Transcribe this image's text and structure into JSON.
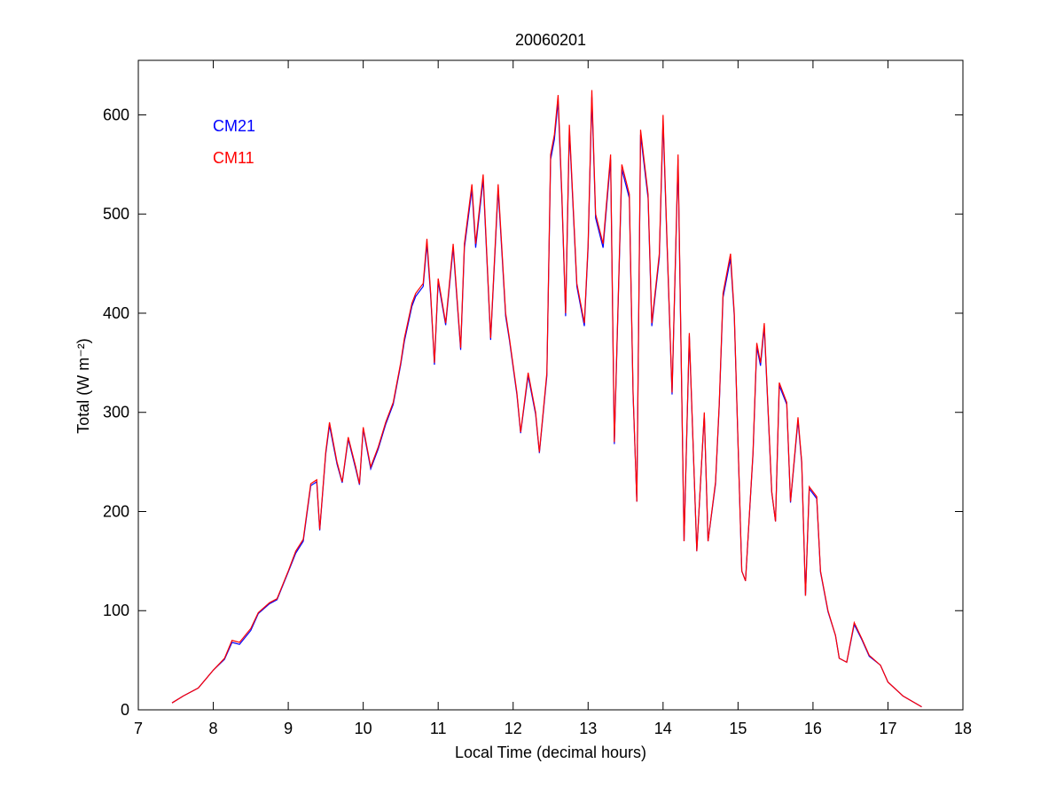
{
  "chart_data": {
    "type": "line",
    "title": "20060201",
    "xlabel": "Local Time (decimal hours)",
    "ylabel": "Total (W m⁻²)",
    "x": [
      7.45,
      7.6,
      7.8,
      8.0,
      8.15,
      8.25,
      8.35,
      8.5,
      8.6,
      8.75,
      8.85,
      9.0,
      9.1,
      9.2,
      9.3,
      9.38,
      9.42,
      9.5,
      9.55,
      9.65,
      9.72,
      9.8,
      9.9,
      9.95,
      10.0,
      10.1,
      10.2,
      10.3,
      10.4,
      10.5,
      10.55,
      10.65,
      10.7,
      10.8,
      10.85,
      10.9,
      10.95,
      11.0,
      11.1,
      11.2,
      11.3,
      11.35,
      11.45,
      11.5,
      11.6,
      11.7,
      11.8,
      11.9,
      11.95,
      12.05,
      12.1,
      12.2,
      12.3,
      12.35,
      12.45,
      12.5,
      12.55,
      12.6,
      12.65,
      12.7,
      12.75,
      12.85,
      12.95,
      13.0,
      13.05,
      13.1,
      13.2,
      13.3,
      13.35,
      13.45,
      13.55,
      13.6,
      13.65,
      13.7,
      13.8,
      13.85,
      13.95,
      14.0,
      14.05,
      14.12,
      14.2,
      14.28,
      14.35,
      14.45,
      14.55,
      14.6,
      14.7,
      14.75,
      14.8,
      14.9,
      14.95,
      15.05,
      15.1,
      15.2,
      15.25,
      15.3,
      15.35,
      15.45,
      15.5,
      15.55,
      15.65,
      15.7,
      15.8,
      15.85,
      15.9,
      15.95,
      16.05,
      16.1,
      16.2,
      16.3,
      16.35,
      16.45,
      16.55,
      16.65,
      16.75,
      16.9,
      17.0,
      17.2,
      17.45
    ],
    "series": [
      {
        "name": "CM21",
        "color": "#0000ff",
        "values": [
          7,
          14,
          22,
          40,
          51,
          68,
          66,
          80,
          97,
          107,
          111,
          139,
          158,
          170,
          226,
          230,
          181,
          258,
          287,
          248,
          229,
          273,
          243,
          227,
          283,
          243,
          263,
          288,
          308,
          348,
          372,
          407,
          417,
          427,
          470,
          417,
          348,
          432,
          388,
          466,
          363,
          466,
          525,
          466,
          535,
          373,
          525,
          397,
          373,
          318,
          279,
          337,
          298,
          259,
          337,
          555,
          575,
          614,
          516,
          397,
          585,
          427,
          387,
          466,
          618,
          496,
          466,
          555,
          268,
          545,
          516,
          318,
          210,
          580,
          516,
          387,
          456,
          594,
          476,
          318,
          555,
          170,
          377,
          160,
          298,
          170,
          228,
          308,
          416,
          455,
          397,
          140,
          130,
          258,
          366,
          347,
          386,
          219,
          190,
          327,
          308,
          209,
          292,
          248,
          115,
          223,
          213,
          139,
          99,
          75,
          52,
          48,
          86,
          71,
          54,
          45,
          28,
          14,
          3
        ]
      },
      {
        "name": "CM11",
        "color": "#ff0000",
        "values": [
          7,
          14,
          22,
          40,
          52,
          70,
          68,
          82,
          98,
          108,
          112,
          140,
          160,
          172,
          228,
          232,
          182,
          260,
          290,
          250,
          230,
          275,
          245,
          228,
          285,
          245,
          265,
          290,
          310,
          350,
          375,
          410,
          420,
          430,
          475,
          420,
          350,
          435,
          390,
          470,
          365,
          470,
          530,
          470,
          540,
          375,
          530,
          400,
          375,
          320,
          280,
          340,
          300,
          260,
          340,
          560,
          580,
          620,
          520,
          400,
          590,
          430,
          390,
          470,
          625,
          500,
          470,
          560,
          270,
          550,
          520,
          320,
          210,
          585,
          520,
          390,
          460,
          600,
          480,
          320,
          560,
          170,
          380,
          160,
          300,
          170,
          230,
          310,
          420,
          460,
          400,
          140,
          130,
          260,
          370,
          350,
          390,
          220,
          190,
          330,
          310,
          210,
          295,
          250,
          115,
          225,
          215,
          140,
          100,
          75,
          52,
          48,
          88,
          72,
          55,
          45,
          28,
          14,
          3
        ]
      }
    ],
    "xlim": [
      7,
      18
    ],
    "xticks": [
      7,
      8,
      9,
      10,
      11,
      12,
      13,
      14,
      15,
      16,
      17,
      18
    ],
    "ylim": [
      0,
      655
    ],
    "yticks": [
      0,
      100,
      200,
      300,
      400,
      500,
      600
    ],
    "legend": "upper left",
    "grid": false
  }
}
